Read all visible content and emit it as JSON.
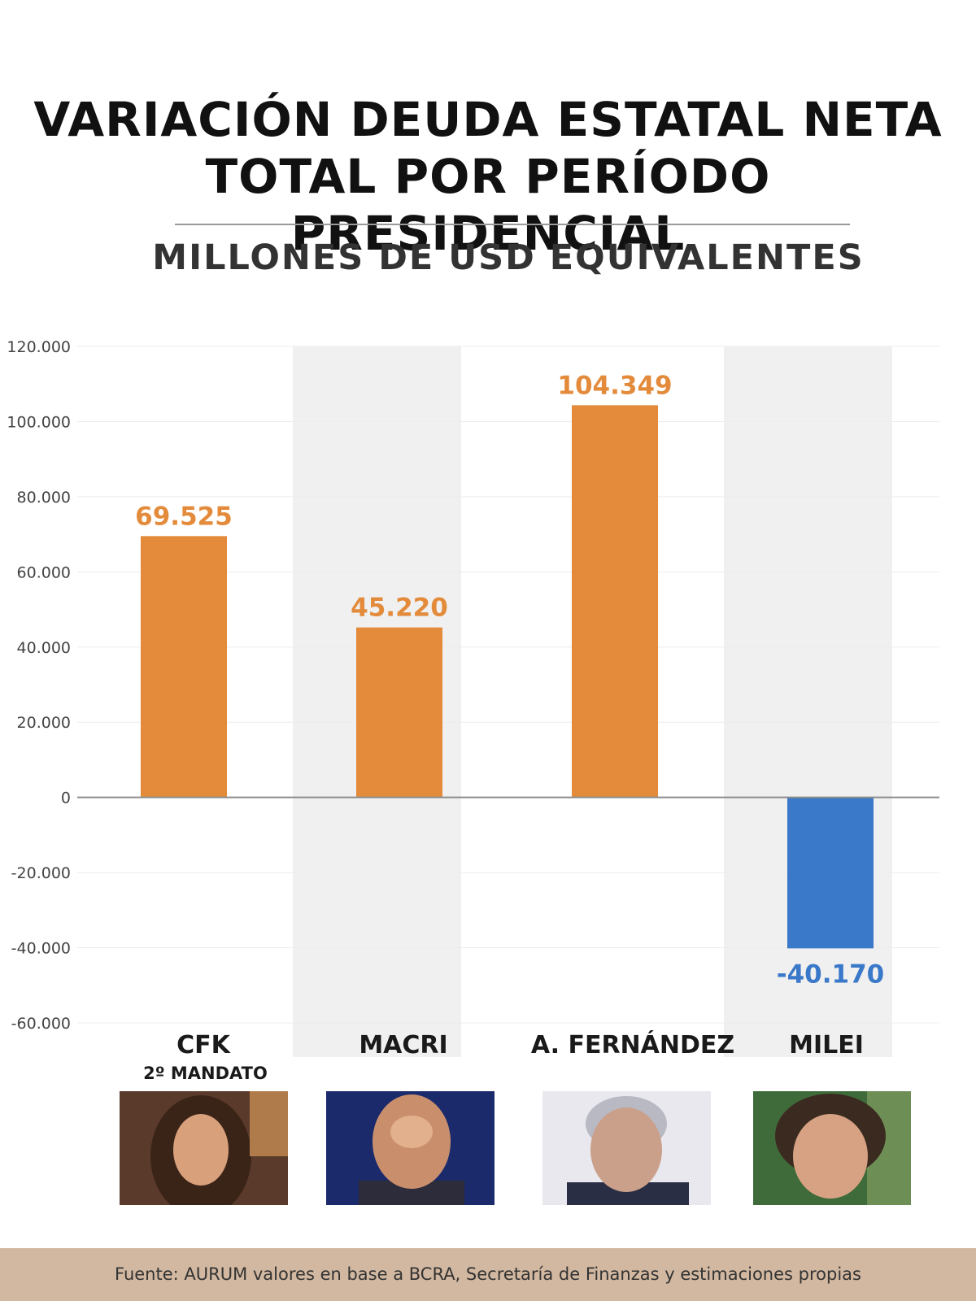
{
  "header": {
    "title_line1": "VARIACIÓN DEUDA ESTATAL NETA",
    "title_line2": "TOTAL POR PERÍODO PRESIDENCIAL",
    "subtitle": "MILLONES DE USD EQUIVALENTES"
  },
  "chart_data": {
    "type": "bar",
    "title": "VARIACIÓN DEUDA ESTATAL NETA TOTAL POR PERÍODO PRESIDENCIAL",
    "subtitle": "MILLONES DE USD EQUIVALENTES",
    "categories": [
      "CFK",
      "MACRI",
      "A.  FERNÁNDEZ",
      "MILEI"
    ],
    "category_sublabels": [
      "2º MANDATO",
      "",
      "",
      ""
    ],
    "values": [
      69525,
      45220,
      104349,
      -40170
    ],
    "value_labels": [
      "69.525",
      "45.220",
      "104.349",
      "-40.170"
    ],
    "ylim": [
      -60000,
      120000
    ],
    "yticks": [
      120000,
      100000,
      80000,
      60000,
      40000,
      20000,
      0,
      -20000,
      -40000,
      -60000
    ],
    "ytick_labels": [
      "120.000",
      "100.000",
      "80.000",
      "60.000",
      "40.000",
      "20.000",
      "0",
      "-20.000",
      "-40.000",
      "-60.000"
    ],
    "grid": true,
    "colors": {
      "positive": "#e38b3b",
      "negative": "#3a78c9",
      "positive_label": "#e38b3b",
      "negative_label": "#3a78c9",
      "band": "#f0f0f0",
      "zero_line": "#8c8c8c",
      "grid": "#ececec"
    },
    "alternating_bands": [
      false,
      true,
      false,
      true
    ]
  },
  "photos": [
    {
      "name": "cfk-photo",
      "colors": [
        "#5a3a2a",
        "#d9a07c",
        "#3a2418",
        "#b07b4a"
      ]
    },
    {
      "name": "macri-photo",
      "colors": [
        "#1b2a6b",
        "#c98f6d",
        "#2c2c3a",
        "#e2b08d"
      ]
    },
    {
      "name": "fernandez-photo",
      "colors": [
        "#e8e8ee",
        "#caa08a",
        "#b9b9c4",
        "#2a2e44"
      ]
    },
    {
      "name": "milei-photo",
      "colors": [
        "#3f6b3a",
        "#d7a283",
        "#3b2a20",
        "#6d8f55"
      ]
    }
  ],
  "footer": {
    "source": "Fuente: AURUM valores en base a BCRA, Secretaría de Finanzas y estimaciones propias",
    "color": "#d2b8a0"
  }
}
